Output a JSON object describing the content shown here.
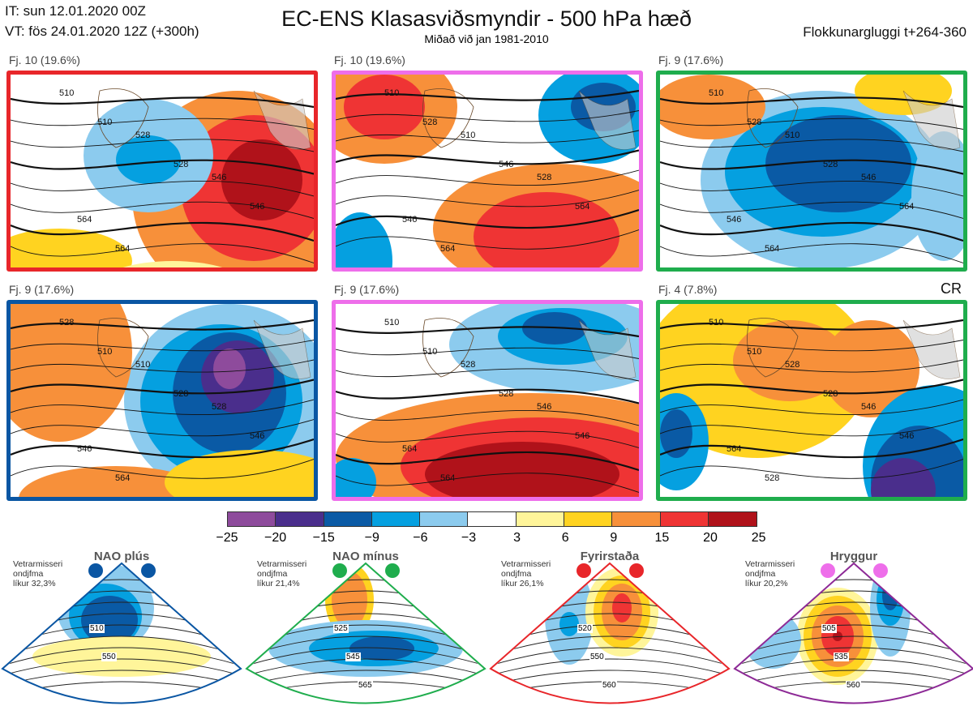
{
  "header": {
    "it": "IT: sun 12.01.2020 00Z",
    "vt": "VT: fös 24.01.2020 12Z  (+300h)",
    "title": "EC-ENS Klasasviðsmyndir - 500 hPa hæð",
    "subtitle": "Miðað við jan 1981-2010",
    "window": "Flokkunargluggi t+264-360",
    "cr": "CR"
  },
  "panels": [
    {
      "label": "Fj. 10 (19.6%)",
      "border": "#e8262a",
      "contours": [
        "510",
        "510",
        "528",
        "528",
        "546",
        "546",
        "564",
        "564"
      ]
    },
    {
      "label": "Fj. 10 (19.6%)",
      "border": "#ee6eea",
      "contours": [
        "510",
        "528",
        "510",
        "546",
        "528",
        "564",
        "546",
        "564"
      ]
    },
    {
      "label": "Fj. 9 (17.6%)",
      "border": "#1fad4d",
      "contours": [
        "510",
        "528",
        "510",
        "528",
        "546",
        "564",
        "546",
        "564"
      ]
    },
    {
      "label": "Fj. 9 (17.6%)",
      "border": "#0a56a3",
      "contours": [
        "528",
        "510",
        "510",
        "528",
        "528",
        "546",
        "546",
        "564"
      ]
    },
    {
      "label": "Fj. 9 (17.6%)",
      "border": "#ee6eea",
      "contours": [
        "510",
        "510",
        "528",
        "528",
        "546",
        "546",
        "564",
        "564"
      ]
    },
    {
      "label": "Fj. 4 (7.8%)",
      "border": "#1fad4d",
      "contours": [
        "510",
        "510",
        "528",
        "528",
        "546",
        "546",
        "564",
        "528"
      ]
    }
  ],
  "colorbar": {
    "colors": [
      "#8e4b9c",
      "#4a2e8c",
      "#0a5aa5",
      "#05a0e0",
      "#8ccbee",
      "#ffffff",
      "#fff59a",
      "#ffd320",
      "#f7903a",
      "#ef3434",
      "#b0121a"
    ],
    "ticks": [
      "−25",
      "−20",
      "−15",
      "−9",
      "−6",
      "−3",
      "3",
      "6",
      "9",
      "15",
      "20",
      "25"
    ]
  },
  "climate": [
    {
      "title": "NAO plús",
      "line1": "Vetrarmisseri",
      "line2": "ondjfma",
      "line3": "líkur 32,3%",
      "color": "#0a56a3",
      "labels": [
        "510",
        "550"
      ]
    },
    {
      "title": "NAO mínus",
      "line1": "Vetrarmisseri",
      "line2": "ondjfma",
      "line3": "líkur 21,4%",
      "color": "#1fad4d",
      "labels": [
        "525",
        "545",
        "565"
      ]
    },
    {
      "title": "Fyrirstaða",
      "line1": "Vetrarmisseri",
      "line2": "ondjfma",
      "line3": "líkur 26,1%",
      "color": "#e8262a",
      "labels": [
        "520",
        "550",
        "560"
      ]
    },
    {
      "title": "Hryggur",
      "line1": "Vetrarmisseri",
      "line2": "ondjfma",
      "line3": "líkur 20,2%",
      "color": "#8d2a96",
      "dot": "#ee6eea",
      "labels": [
        "505",
        "535",
        "560"
      ]
    }
  ]
}
